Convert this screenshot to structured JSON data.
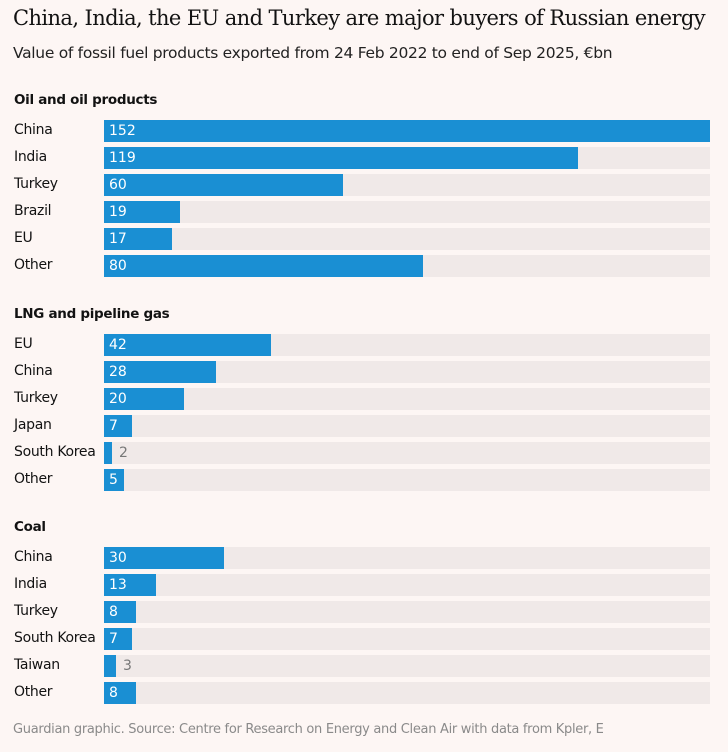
{
  "title": "China, India, the EU and Turkey are major buyers of Russian energy",
  "subtitle": "Value of fossil fuel products exported from 24 Feb 2022 to end of Sep 2025, €bn",
  "footer": "Guardian graphic. Source: Centre for Research on Energy and Clean Air with data from Kpler, E",
  "colors": {
    "bar": "#1a8fd3",
    "track": "#f0e9e8",
    "background": "#fdf6f4"
  },
  "chart_data": [
    {
      "type": "bar",
      "orientation": "horizontal",
      "title": "Oil and oil products",
      "xlim": [
        0,
        152
      ],
      "categories": [
        "China",
        "India",
        "Turkey",
        "Brazil",
        "EU",
        "Other"
      ],
      "values": [
        152,
        119,
        60,
        19,
        17,
        80
      ]
    },
    {
      "type": "bar",
      "orientation": "horizontal",
      "title": "LNG and pipeline gas",
      "xlim": [
        0,
        152
      ],
      "categories": [
        "EU",
        "China",
        "Turkey",
        "Japan",
        "South Korea",
        "Other"
      ],
      "values": [
        42,
        28,
        20,
        7,
        2,
        5
      ]
    },
    {
      "type": "bar",
      "orientation": "horizontal",
      "title": "Coal",
      "xlim": [
        0,
        152
      ],
      "categories": [
        "China",
        "India",
        "Turkey",
        "South Korea",
        "Taiwan",
        "Other"
      ],
      "values": [
        30,
        13,
        8,
        7,
        3,
        8
      ]
    }
  ]
}
